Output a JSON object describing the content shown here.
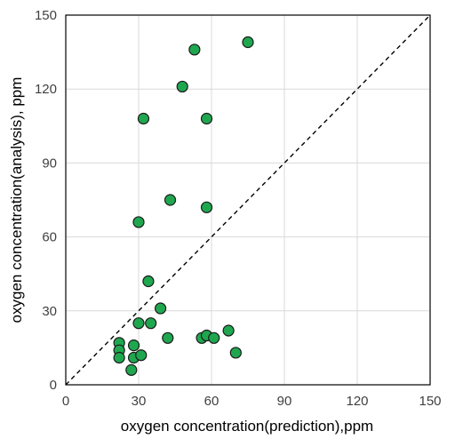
{
  "chart_data": {
    "type": "scatter",
    "title": "",
    "xlabel": "oxygen  concentration(prediction),ppm",
    "ylabel": "oxygen  concentration(analysis), ppm",
    "xlim": [
      0,
      150
    ],
    "ylim": [
      0,
      150
    ],
    "xticks": [
      0,
      30,
      60,
      90,
      120,
      150
    ],
    "yticks": [
      0,
      30,
      60,
      90,
      120,
      150
    ],
    "grid": true,
    "legend": "none",
    "reference_line": {
      "style": "dashed",
      "from": [
        0,
        0
      ],
      "to": [
        150,
        150
      ]
    },
    "series": [
      {
        "marker_color": "#1fa750",
        "marker_edge": "#1a1a1a",
        "points": [
          [
            22,
            17
          ],
          [
            22,
            14
          ],
          [
            22,
            11
          ],
          [
            27,
            6
          ],
          [
            28,
            16
          ],
          [
            28,
            11
          ],
          [
            31,
            12
          ],
          [
            30,
            25
          ],
          [
            35,
            25
          ],
          [
            39,
            31
          ],
          [
            42,
            19
          ],
          [
            34,
            42
          ],
          [
            30,
            66
          ],
          [
            43,
            75
          ],
          [
            58,
            72
          ],
          [
            32,
            108
          ],
          [
            58,
            108
          ],
          [
            48,
            121
          ],
          [
            53,
            136
          ],
          [
            75,
            139
          ],
          [
            56,
            19
          ],
          [
            58,
            20
          ],
          [
            61,
            19
          ],
          [
            67,
            22
          ],
          [
            70,
            13
          ]
        ]
      }
    ]
  }
}
